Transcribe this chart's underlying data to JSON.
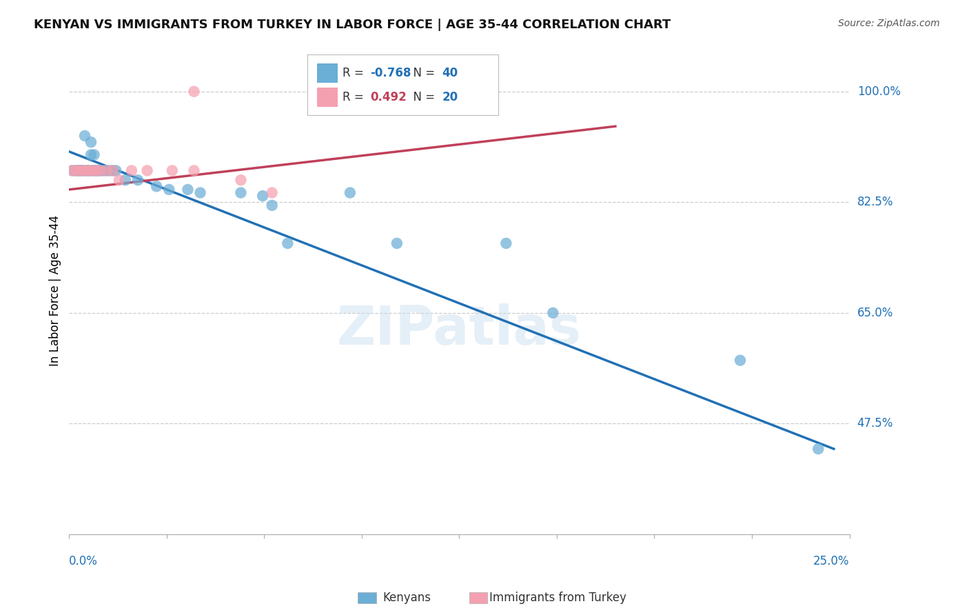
{
  "title": "KENYAN VS IMMIGRANTS FROM TURKEY IN LABOR FORCE | AGE 35-44 CORRELATION CHART",
  "source": "Source: ZipAtlas.com",
  "ylabel": "In Labor Force | Age 35-44",
  "ytick_labels": [
    "100.0%",
    "82.5%",
    "65.0%",
    "47.5%"
  ],
  "ytick_values": [
    1.0,
    0.825,
    0.65,
    0.475
  ],
  "xlim": [
    0.0,
    0.25
  ],
  "ylim": [
    0.3,
    1.07
  ],
  "legend_r_blue": "-0.768",
  "legend_n_blue": "40",
  "legend_r_pink": "0.492",
  "legend_n_pink": "20",
  "blue_color": "#6baed6",
  "pink_color": "#f4a0b0",
  "blue_line_color": "#2171b5",
  "pink_line_color": "#c0405a",
  "watermark": "ZIPatlas",
  "blue_scatter_x": [
    0.001,
    0.002,
    0.003,
    0.003,
    0.004,
    0.004,
    0.005,
    0.005,
    0.006,
    0.006,
    0.007,
    0.007,
    0.007,
    0.008,
    0.008,
    0.008,
    0.009,
    0.009,
    0.01,
    0.011,
    0.012,
    0.013,
    0.014,
    0.015,
    0.018,
    0.022,
    0.028,
    0.032,
    0.038,
    0.042,
    0.055,
    0.062,
    0.065,
    0.07,
    0.09,
    0.105,
    0.14,
    0.155,
    0.215,
    0.24
  ],
  "blue_scatter_y": [
    0.875,
    0.875,
    0.875,
    0.875,
    0.875,
    0.875,
    0.93,
    0.875,
    0.875,
    0.875,
    0.92,
    0.9,
    0.875,
    0.9,
    0.875,
    0.875,
    0.875,
    0.875,
    0.875,
    0.875,
    0.875,
    0.875,
    0.875,
    0.875,
    0.86,
    0.86,
    0.85,
    0.845,
    0.845,
    0.84,
    0.84,
    0.835,
    0.82,
    0.76,
    0.84,
    0.76,
    0.76,
    0.65,
    0.575,
    0.435
  ],
  "pink_scatter_x": [
    0.001,
    0.002,
    0.003,
    0.004,
    0.005,
    0.006,
    0.007,
    0.008,
    0.009,
    0.01,
    0.012,
    0.014,
    0.016,
    0.02,
    0.025,
    0.033,
    0.04,
    0.055,
    0.065,
    0.04
  ],
  "pink_scatter_y": [
    0.875,
    0.875,
    0.875,
    0.875,
    0.875,
    0.875,
    0.875,
    0.875,
    0.875,
    0.875,
    0.875,
    0.875,
    0.86,
    0.875,
    0.875,
    0.875,
    0.875,
    0.86,
    0.84,
    1.0
  ],
  "blue_trend_x": [
    0.0,
    0.245
  ],
  "blue_trend_y": [
    0.905,
    0.435
  ],
  "pink_trend_x": [
    0.0,
    0.175
  ],
  "pink_trend_y": [
    0.845,
    0.945
  ]
}
